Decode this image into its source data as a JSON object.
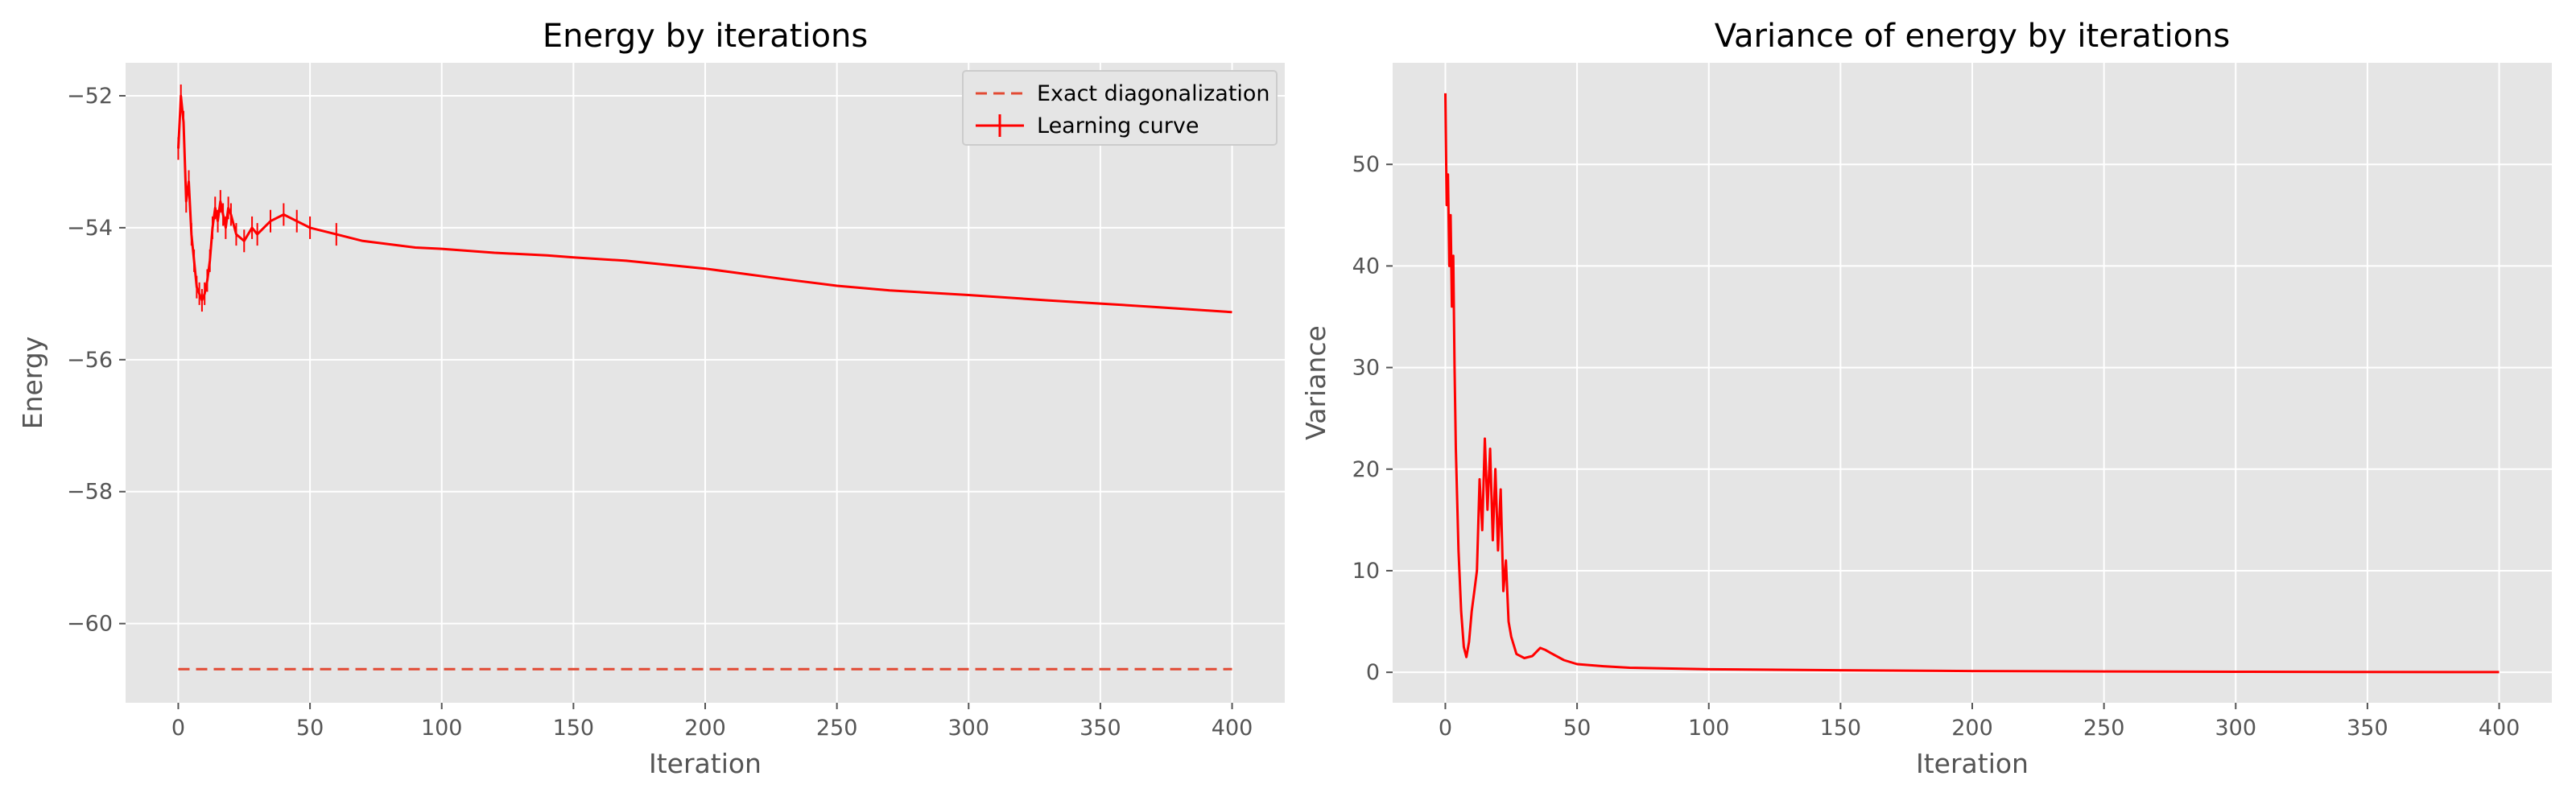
{
  "chart_data": [
    {
      "type": "line",
      "title": "Energy by iterations",
      "xlabel": "Iteration",
      "ylabel": "Energy",
      "xlim": [
        -20,
        420
      ],
      "ylim": [
        -61.2,
        -51.5
      ],
      "xticks": [
        0,
        50,
        100,
        150,
        200,
        250,
        300,
        350,
        400
      ],
      "yticks": [
        -60,
        -58,
        -56,
        -54,
        -52
      ],
      "ytick_labels": [
        "−60",
        "−58",
        "−56",
        "−54",
        "−52"
      ],
      "grid": true,
      "legend": "top-right",
      "series": [
        {
          "name": "Exact diagonalization",
          "style": "dashed",
          "color": "#e24a33",
          "x": [
            0,
            400
          ],
          "y": [
            -60.69,
            -60.69
          ]
        },
        {
          "name": "Learning curve",
          "style": "solid-with-errorbars",
          "color": "#ff0000",
          "x": [
            0,
            1,
            2,
            3,
            4,
            5,
            6,
            7,
            8,
            9,
            10,
            11,
            12,
            13,
            14,
            15,
            16,
            17,
            18,
            19,
            20,
            22,
            25,
            28,
            30,
            35,
            40,
            45,
            50,
            60,
            70,
            80,
            90,
            100,
            120,
            140,
            150,
            170,
            200,
            230,
            250,
            270,
            300,
            330,
            350,
            370,
            400
          ],
          "y": [
            -52.8,
            -52.0,
            -52.4,
            -53.6,
            -53.3,
            -54.1,
            -54.5,
            -54.9,
            -55.0,
            -55.1,
            -55.0,
            -54.8,
            -54.5,
            -54.0,
            -53.7,
            -53.9,
            -53.6,
            -53.8,
            -54.0,
            -53.7,
            -53.8,
            -54.1,
            -54.2,
            -54.0,
            -54.1,
            -53.9,
            -53.8,
            -53.9,
            -54.0,
            -54.1,
            -54.2,
            -54.25,
            -54.3,
            -54.32,
            -54.38,
            -54.42,
            -54.45,
            -54.5,
            -54.62,
            -54.78,
            -54.88,
            -54.95,
            -55.02,
            -55.1,
            -55.15,
            -55.2,
            -55.28
          ]
        }
      ]
    },
    {
      "type": "line",
      "title": "Variance of energy by iterations",
      "xlabel": "Iteration",
      "ylabel": "Variance",
      "xlim": [
        -20,
        420
      ],
      "ylim": [
        -3,
        60
      ],
      "xticks": [
        0,
        50,
        100,
        150,
        200,
        250,
        300,
        350,
        400
      ],
      "yticks": [
        0,
        10,
        20,
        30,
        40,
        50
      ],
      "grid": true,
      "series": [
        {
          "style": "solid",
          "color": "#ff0000",
          "x": [
            0,
            0.5,
            1,
            1.5,
            2,
            2.5,
            3,
            3.5,
            4,
            5,
            6,
            7,
            8,
            9,
            10,
            11,
            12,
            13,
            14,
            15,
            16,
            17,
            18,
            19,
            20,
            21,
            22,
            23,
            24,
            25,
            27,
            30,
            33,
            36,
            38,
            40,
            45,
            50,
            60,
            70,
            80,
            100,
            150,
            200,
            250,
            300,
            350,
            400
          ],
          "y": [
            57,
            46,
            49,
            40,
            45,
            36,
            41,
            30,
            22,
            12,
            6,
            2.5,
            1.5,
            3,
            6,
            8,
            10,
            19,
            14,
            23,
            16,
            22,
            13,
            20,
            12,
            18,
            8,
            11,
            5,
            3.5,
            1.8,
            1.4,
            1.6,
            2.4,
            2.2,
            1.9,
            1.2,
            0.8,
            0.6,
            0.45,
            0.4,
            0.3,
            0.2,
            0.12,
            0.08,
            0.05,
            0.03,
            0.02
          ]
        }
      ]
    }
  ]
}
